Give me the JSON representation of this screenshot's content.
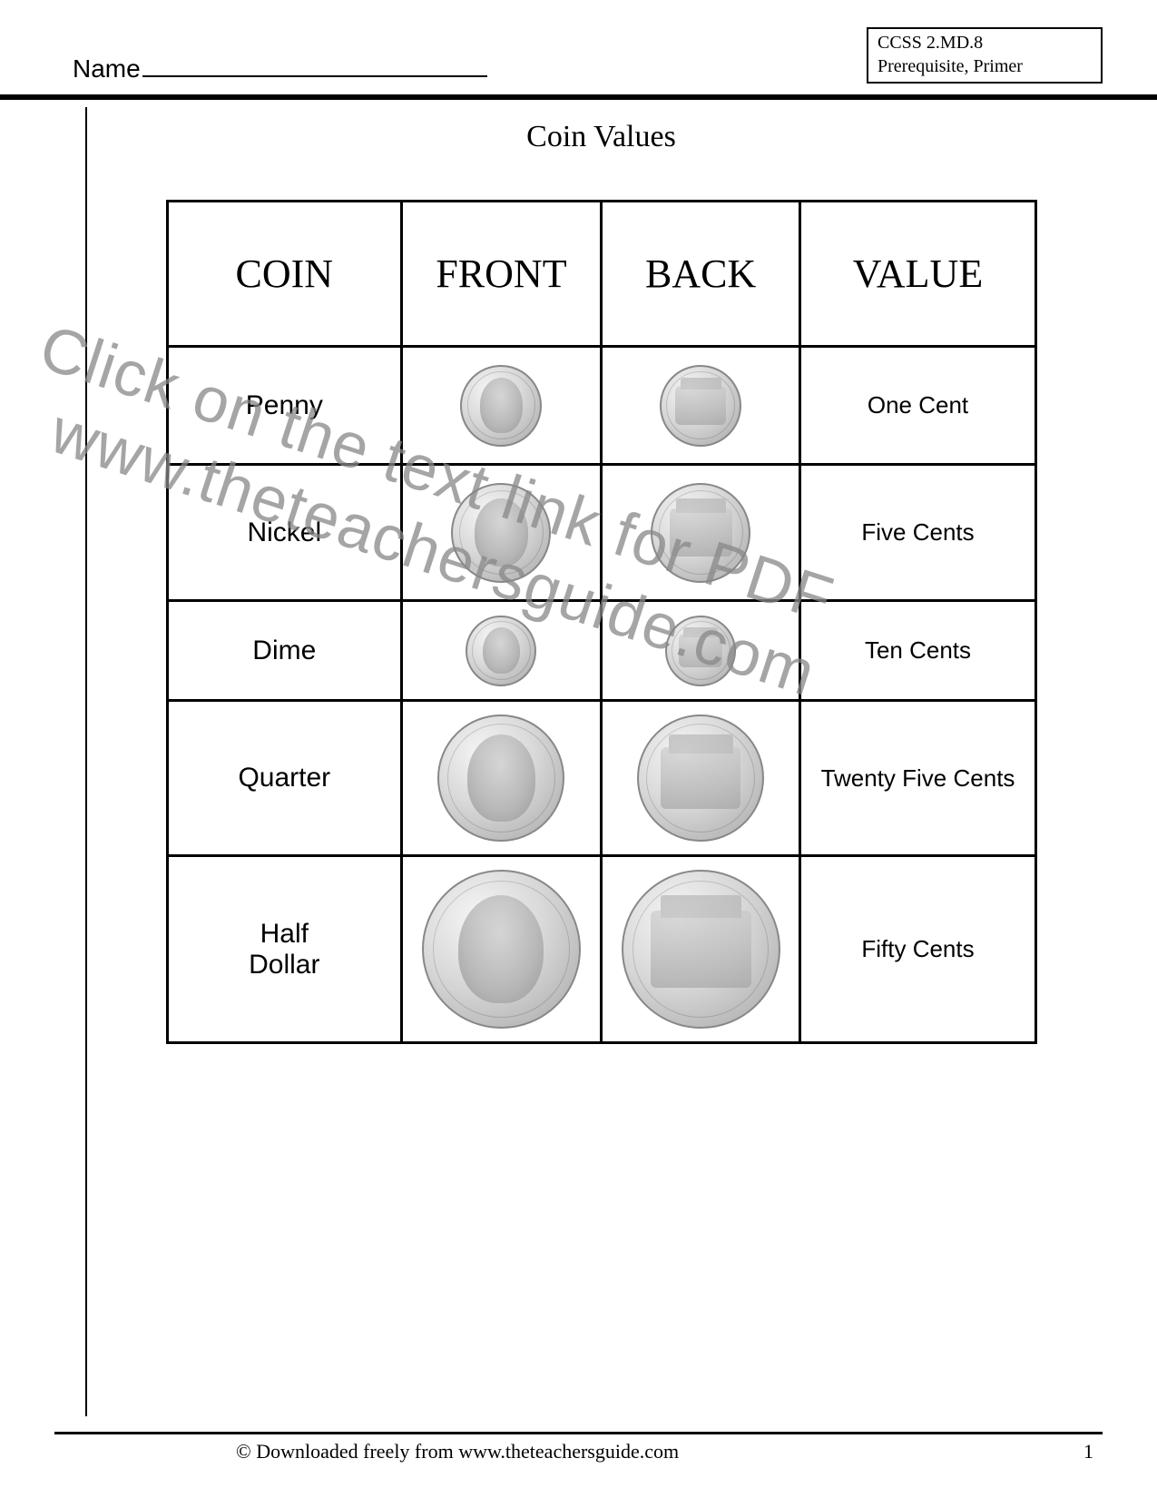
{
  "header": {
    "name_label": "Name",
    "standards_line1": "CCSS  2.MD.8",
    "standards_line2": "Prerequisite, Primer"
  },
  "title": "Coin Values",
  "table": {
    "headers": {
      "coin": "COIN",
      "front": "FRONT",
      "back": "BACK",
      "value": "VALUE"
    },
    "rows": [
      {
        "name": "Penny",
        "value": "One Cent",
        "front_size": 90,
        "back_size": 90,
        "row_class": "row-penny"
      },
      {
        "name": "Nickel",
        "value": "Five Cents",
        "front_size": 110,
        "back_size": 110,
        "row_class": "row-nickel"
      },
      {
        "name": "Dime",
        "value": "Ten Cents",
        "front_size": 78,
        "back_size": 78,
        "row_class": "row-dime"
      },
      {
        "name": "Quarter",
        "value": "Twenty Five Cents",
        "front_size": 140,
        "back_size": 140,
        "row_class": "row-quarter"
      },
      {
        "name": "Half Dollar",
        "value": "Fifty Cents",
        "front_size": 175,
        "back_size": 175,
        "row_class": "row-half"
      }
    ]
  },
  "watermark": {
    "line1": "Click on the text link for PDF",
    "line2": "www.theteachersguide.com"
  },
  "footer": {
    "text": "© Downloaded freely from www.theteachersguide.com",
    "page_number": "1"
  },
  "colors": {
    "text": "#000000",
    "background": "#ffffff",
    "watermark": "#888888",
    "coin_light": "#f5f5f5",
    "coin_mid": "#d8d8d8",
    "coin_dark": "#9a9a9a"
  }
}
